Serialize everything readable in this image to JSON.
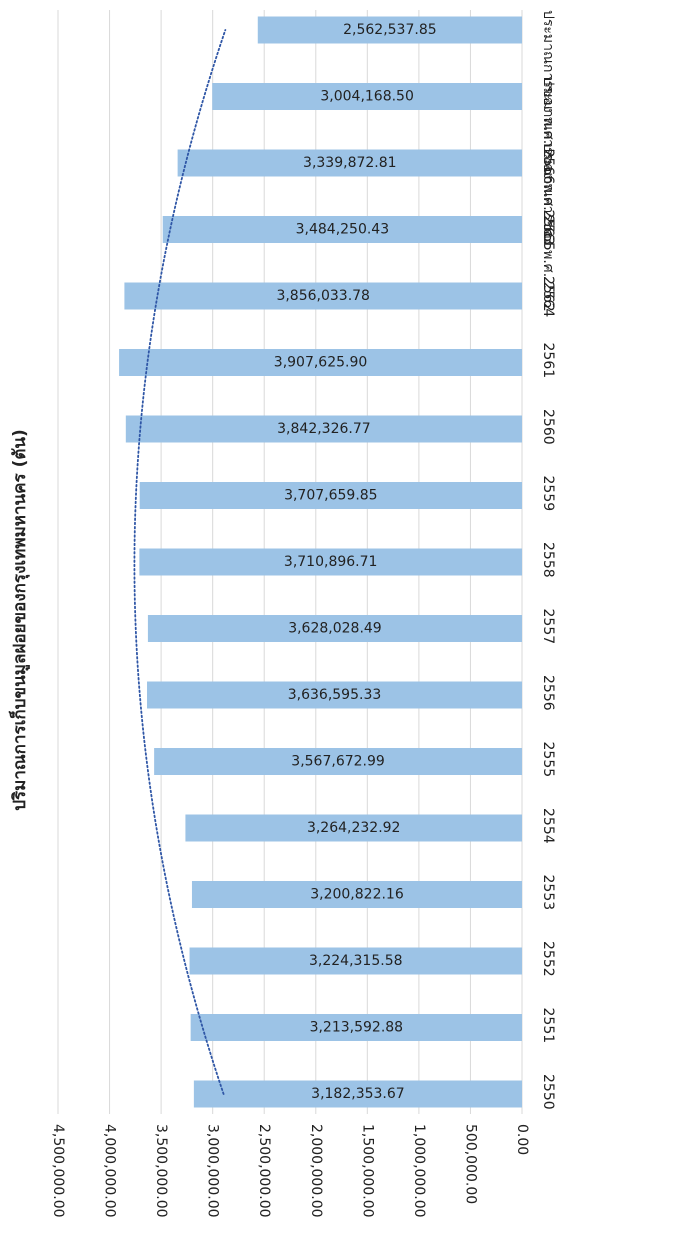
{
  "chart_data": {
    "type": "bar",
    "orientation": "horizontal-rotated",
    "title": "",
    "ylabel": "ปริมาณการเก็บขนมูลฝอยของกรุงเทพมหานคร (ตัน)",
    "xlabel": "",
    "categories": [
      "2550",
      "2551",
      "2552",
      "2553",
      "2554",
      "2555",
      "2556",
      "2557",
      "2558",
      "2559",
      "2560",
      "2561",
      "2562",
      "2563",
      "ประมาณการของ พ.ศ. 2564",
      "ประมาณการของ พ.ศ. 2565",
      "ประมาณการของ พ.ศ. 2566"
    ],
    "values": [
      3182353.67,
      3213592.88,
      3224315.58,
      3200822.16,
      3264232.92,
      3567672.99,
      3636595.33,
      3628028.49,
      3710896.71,
      3707659.85,
      3842326.77,
      3907625.9,
      3856033.78,
      3484250.43,
      3339872.81,
      3004168.5,
      2562537.85
    ],
    "data_labels": [
      "3,182,353.67",
      "3,213,592.88",
      "3,224,315.58",
      "3,200,822.16",
      "3,264,232.92",
      "3,567,672.99",
      "3,636,595.33",
      "3,628,028.49",
      "3,710,896.71",
      "3,707,659.85",
      "3,842,326.77",
      "3,907,625.90",
      "3,856,033.78",
      "3,484,250.43",
      "3,339,872.81",
      "3,004,168.50",
      "2,562,537.85"
    ],
    "value_axis": {
      "min": 0,
      "max": 4500000,
      "ticks": [
        0,
        500000,
        1000000,
        1500000,
        2000000,
        2500000,
        3000000,
        3500000,
        4000000,
        4500000
      ],
      "tick_labels": [
        "0.00",
        "500,000.00",
        "1,000,000.00",
        "1,500,000.00",
        "2,000,000.00",
        "2,500,000.00",
        "3,000,000.00",
        "3,500,000.00",
        "4,000,000.00",
        "4,500,000.00"
      ]
    },
    "trendline": {
      "type": "polynomial",
      "style": "dotted",
      "color": "#2f56a6"
    },
    "grid": true,
    "legend": "none",
    "colors": {
      "bar": "#9cc3e6",
      "trendline": "#2f56a6",
      "grid": "#d9d9d9"
    }
  }
}
